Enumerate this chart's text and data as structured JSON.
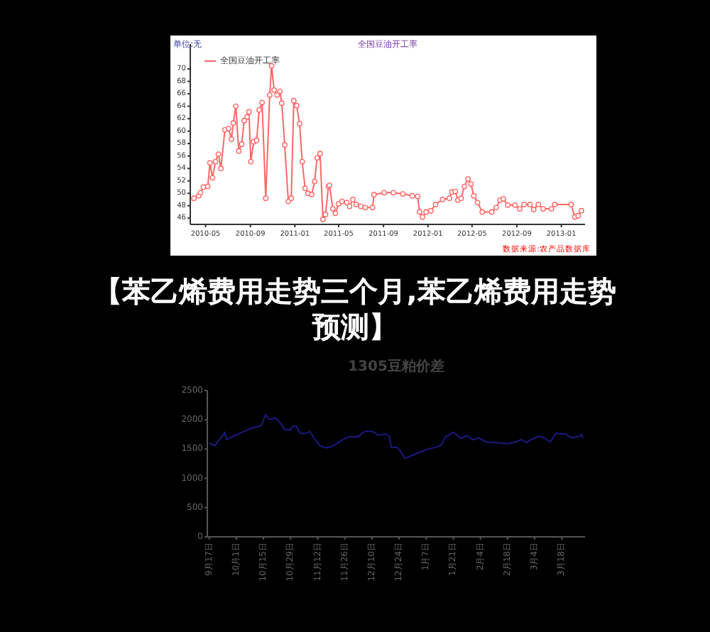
{
  "chart_data": [
    {
      "type": "line",
      "title": "全国豆油开工率",
      "ylabel": "单位:无",
      "annotations": [
        "数据来源:农产品数据库"
      ],
      "legend": "top left",
      "marker": "circle",
      "grid": false,
      "xlim": [
        "2010-03-20",
        "2013-03-07"
      ],
      "xticks": [
        "2010-05",
        "2010-09",
        "2011-01",
        "2011-05",
        "2011-09",
        "2012-01",
        "2012-05",
        "2012-09",
        "2013-01"
      ],
      "ylim": [
        45,
        74
      ],
      "yticks": [
        46,
        48,
        50,
        52,
        54,
        56,
        58,
        60,
        62,
        64,
        66,
        68,
        70
      ],
      "series": [
        {
          "name": "全国豆油开工率",
          "color": "#ff6666",
          "x": [
            "2010-03-30",
            "2010-04-12",
            "2010-04-17",
            "2010-04-25",
            "2010-05-07",
            "2010-05-13",
            "2010-05-20",
            "2010-05-28",
            "2010-06-05",
            "2010-06-12",
            "2010-06-23",
            "2010-07-03",
            "2010-07-11",
            "2010-07-16",
            "2010-07-23",
            "2010-07-31",
            "2010-08-08",
            "2010-08-15",
            "2010-08-23",
            "2010-08-28",
            "2010-09-02",
            "2010-09-10",
            "2010-09-18",
            "2010-09-25",
            "2010-10-03",
            "2010-10-13",
            "2010-10-24",
            "2010-10-29",
            "2010-11-05",
            "2010-11-13",
            "2010-11-21",
            "2010-11-26",
            "2010-12-04",
            "2010-12-14",
            "2010-12-22",
            "2010-12-29",
            "2011-01-06",
            "2011-01-14",
            "2011-01-21",
            "2011-01-29",
            "2011-02-06",
            "2011-02-16",
            "2011-02-24",
            "2011-03-03",
            "2011-03-11",
            "2011-03-19",
            "2011-03-26",
            "2011-04-03",
            "2011-04-06",
            "2011-04-15",
            "2011-04-22",
            "2011-05-01",
            "2011-05-10",
            "2011-05-23",
            "2011-05-31",
            "2011-06-09",
            "2011-06-18",
            "2011-07-01",
            "2011-07-13",
            "2011-08-02",
            "2011-08-06",
            "2011-09-03",
            "2011-09-28",
            "2011-10-24",
            "2011-11-19",
            "2011-12-04",
            "2011-12-09",
            "2011-12-17",
            "2011-12-27",
            "2012-01-09",
            "2012-01-22",
            "2012-02-10",
            "2012-02-29",
            "2012-03-07",
            "2012-03-16",
            "2012-03-23",
            "2012-04-01",
            "2012-04-10",
            "2012-04-20",
            "2012-04-28",
            "2012-05-06",
            "2012-05-16",
            "2012-05-29",
            "2012-06-24",
            "2012-07-06",
            "2012-07-17",
            "2012-07-26",
            "2012-08-07",
            "2012-08-27",
            "2012-09-09",
            "2012-09-21",
            "2012-10-07",
            "2012-10-17",
            "2012-10-30",
            "2012-11-12",
            "2012-12-05",
            "2012-12-14",
            "2013-01-28",
            "2013-02-07",
            "2013-02-16",
            "2013-02-25"
          ],
          "values": [
            49.2,
            49.6,
            50.1,
            51.0,
            51.1,
            54.9,
            52.5,
            55.1,
            56.3,
            54.0,
            60.2,
            60.4,
            58.7,
            61.3,
            64.0,
            56.8,
            57.9,
            61.7,
            62.3,
            63.1,
            55.1,
            58.3,
            58.5,
            63.4,
            64.6,
            49.2,
            65.8,
            70.5,
            66.6,
            65.8,
            66.4,
            64.5,
            57.8,
            48.7,
            49.2,
            64.9,
            64.1,
            61.2,
            55.1,
            50.8,
            50.0,
            49.8,
            51.9,
            55.7,
            56.4,
            45.8,
            46.6,
            51.1,
            51.3,
            47.5,
            46.8,
            48.3,
            48.7,
            48.5,
            47.9,
            49.0,
            48.2,
            47.9,
            47.7,
            47.7,
            49.8,
            50.1,
            50.1,
            49.9,
            49.6,
            49.5,
            47.0,
            46.2,
            47.0,
            47.2,
            48.2,
            49.0,
            49.2,
            50.2,
            50.3,
            48.9,
            49.2,
            51.1,
            52.3,
            51.5,
            49.6,
            48.5,
            47.0,
            47.0,
            47.7,
            48.9,
            49.1,
            48.1,
            48.1,
            47.5,
            48.2,
            48.2,
            47.4,
            48.2,
            47.5,
            47.5,
            48.2,
            48.2,
            46.2,
            46.4,
            47.2
          ]
        }
      ]
    },
    {
      "type": "other",
      "title": "【苯乙烯费用走势三个月,苯乙烯费用走势预测】"
    },
    {
      "type": "line",
      "title": "1305豆粕价差",
      "legend": false,
      "grid": false,
      "xlim": [
        "2012-09-16",
        "2013-03-30"
      ],
      "xticks": [
        {
          "value": "2012-09-17",
          "label": "9月17日"
        },
        {
          "value": "2012-10-01",
          "label": "10月1日"
        },
        {
          "value": "2012-10-15",
          "label": "10月15日"
        },
        {
          "value": "2012-10-29",
          "label": "10月29日"
        },
        {
          "value": "2012-11-12",
          "label": "11月12日"
        },
        {
          "value": "2012-11-26",
          "label": "11月26日"
        },
        {
          "value": "2012-12-10",
          "label": "12月10日"
        },
        {
          "value": "2012-12-24",
          "label": "12月24日"
        },
        {
          "value": "2013-01-07",
          "label": "1月7日"
        },
        {
          "value": "2013-01-21",
          "label": "1月21日"
        },
        {
          "value": "2013-02-04",
          "label": "2月4日"
        },
        {
          "value": "2013-02-18",
          "label": "2月18日"
        },
        {
          "value": "2013-03-04",
          "label": "3月4日"
        },
        {
          "value": "2013-03-18",
          "label": "3月18日"
        }
      ],
      "ylim": [
        0,
        2500
      ],
      "yticks": [
        0,
        500,
        1000,
        1500,
        2000,
        2500
      ],
      "series": [
        {
          "color": "#1a1a80",
          "x": [
            "2012-09-17",
            "2012-09-20",
            "2012-09-22",
            "2012-09-24",
            "2012-09-25",
            "2012-09-26",
            "2012-09-30",
            "2012-10-05",
            "2012-10-08",
            "2012-10-12",
            "2012-10-14",
            "2012-10-15",
            "2012-10-16",
            "2012-10-18",
            "2012-10-21",
            "2012-10-22",
            "2012-10-24",
            "2012-10-26",
            "2012-10-29",
            "2012-10-30",
            "2012-11-01",
            "2012-11-03",
            "2012-11-06",
            "2012-11-08",
            "2012-11-10",
            "2012-11-13",
            "2012-11-16",
            "2012-11-19",
            "2012-11-23",
            "2012-11-25",
            "2012-11-28",
            "2012-12-03",
            "2012-12-06",
            "2012-12-08",
            "2012-12-11",
            "2012-12-13",
            "2012-12-17",
            "2012-12-19",
            "2012-12-20",
            "2012-12-23",
            "2012-12-25",
            "2012-12-27",
            "2012-12-30",
            "2013-01-04",
            "2013-01-08",
            "2013-01-13",
            "2013-01-15",
            "2013-01-17",
            "2013-01-21",
            "2013-01-25",
            "2013-01-28",
            "2013-01-31",
            "2013-02-03",
            "2013-02-07",
            "2013-02-12",
            "2013-02-18",
            "2013-02-22",
            "2013-02-25",
            "2013-02-28",
            "2013-03-02",
            "2013-03-06",
            "2013-03-09",
            "2013-03-12",
            "2013-03-15",
            "2013-03-20",
            "2013-03-23",
            "2013-03-27",
            "2013-03-28",
            "2013-03-29"
          ],
          "values": [
            1600,
            1560,
            1660,
            1720,
            1790,
            1660,
            1730,
            1800,
            1850,
            1880,
            1910,
            1990,
            2090,
            2010,
            2030,
            2010,
            1930,
            1830,
            1830,
            1890,
            1890,
            1770,
            1770,
            1800,
            1690,
            1560,
            1520,
            1540,
            1620,
            1660,
            1710,
            1710,
            1800,
            1810,
            1790,
            1740,
            1760,
            1720,
            1530,
            1530,
            1450,
            1340,
            1380,
            1450,
            1500,
            1540,
            1580,
            1710,
            1790,
            1680,
            1730,
            1660,
            1690,
            1620,
            1610,
            1590,
            1620,
            1660,
            1610,
            1660,
            1720,
            1690,
            1620,
            1770,
            1760,
            1690,
            1720,
            1750,
            1690
          ]
        }
      ]
    }
  ]
}
